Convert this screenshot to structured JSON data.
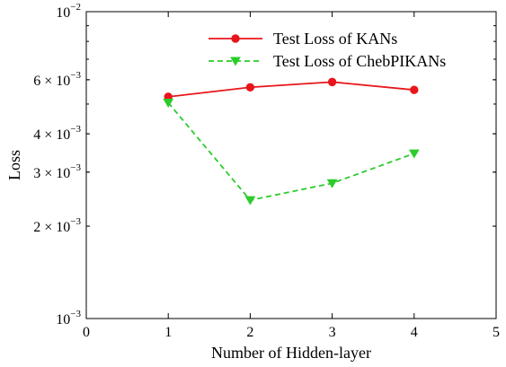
{
  "chart_data": {
    "type": "line",
    "xlabel": "Number of Hidden-layer",
    "ylabel": "Loss",
    "xlim": [
      0,
      5
    ],
    "ylim": [
      0.001,
      0.01
    ],
    "yscale": "log",
    "grid": false,
    "legend_position": "top-right",
    "x_ticks": [
      {
        "value": 0,
        "label": "0"
      },
      {
        "value": 1,
        "label": "1"
      },
      {
        "value": 2,
        "label": "2"
      },
      {
        "value": 3,
        "label": "3"
      },
      {
        "value": 4,
        "label": "4"
      },
      {
        "value": 5,
        "label": "5"
      }
    ],
    "y_ticks": [
      {
        "value": 0.01,
        "mantissa": "10",
        "exponent": "−2"
      },
      {
        "value": 0.006,
        "mantissa": "6 × 10",
        "exponent": "−3"
      },
      {
        "value": 0.004,
        "mantissa": "4 × 10",
        "exponent": "−3"
      },
      {
        "value": 0.003,
        "mantissa": "3 × 10",
        "exponent": "−3"
      },
      {
        "value": 0.002,
        "mantissa": "2 × 10",
        "exponent": "−3"
      },
      {
        "value": 0.001,
        "mantissa": "10",
        "exponent": "−3"
      }
    ],
    "series": [
      {
        "name": "Test Loss of KANs",
        "color": "#e8161b",
        "line_style": "solid",
        "marker": "circle",
        "x": [
          1,
          2,
          3,
          4
        ],
        "y": [
          0.00528,
          0.00567,
          0.0059,
          0.00556
        ]
      },
      {
        "name": "Test Loss of ChebPIKANs",
        "color": "#2bcc2b",
        "line_style": "dashed",
        "marker": "triangle-down",
        "x": [
          1,
          2,
          3,
          4
        ],
        "y": [
          0.00505,
          0.00243,
          0.00276,
          0.00345
        ]
      }
    ]
  }
}
